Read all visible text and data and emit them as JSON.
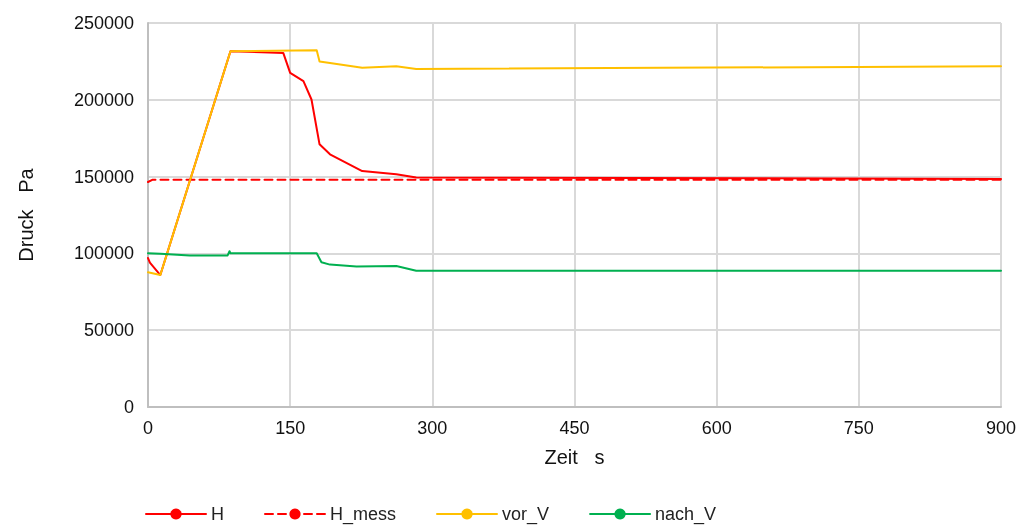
{
  "chart_data": {
    "type": "line",
    "xlabel": "Zeit   s",
    "ylabel": "Druck   Pa",
    "xlim": [
      0,
      900
    ],
    "xticks": [
      0,
      150,
      300,
      450,
      600,
      750,
      900
    ],
    "ylim": [
      0,
      250000
    ],
    "yticks": [
      0,
      50000,
      100000,
      150000,
      200000,
      250000
    ],
    "grid": true,
    "legend": "bottom",
    "marker": "none",
    "series": [
      {
        "name": "H",
        "color": "#ff0000",
        "line_style": "solid",
        "x": [
          0,
          2,
          13,
          87,
          120,
          142.7,
          150,
          164,
          172.5,
          181,
          192,
          226,
          262,
          283,
          900
        ],
        "values": [
          97000,
          94000,
          85900,
          231600,
          231000,
          230500,
          217500,
          212100,
          200200,
          171000,
          164500,
          153600,
          151500,
          149400,
          148500
        ]
      },
      {
        "name": "H_mess",
        "color": "#ff0000",
        "line_style": "dashed",
        "x": [
          0,
          5,
          20,
          900
        ],
        "values": [
          146500,
          148000,
          148000,
          148000
        ]
      },
      {
        "name": "vor_V",
        "color": "#ffc000",
        "line_style": "solid",
        "x": [
          0,
          13,
          87,
          178,
          181,
          192,
          226,
          262,
          283,
          900
        ],
        "values": [
          87700,
          85900,
          231600,
          232200,
          225000,
          224000,
          220800,
          221800,
          220100,
          221800
        ]
      },
      {
        "name": "nach_V",
        "color": "#00b050",
        "line_style": "solid",
        "x": [
          0,
          13,
          44,
          84,
          86,
          87,
          178,
          183,
          192,
          220,
          262,
          283,
          900
        ],
        "values": [
          100100,
          99800,
          98700,
          98700,
          101400,
          100100,
          100100,
          94200,
          92700,
          91500,
          91800,
          88700,
          88700
        ]
      }
    ]
  }
}
